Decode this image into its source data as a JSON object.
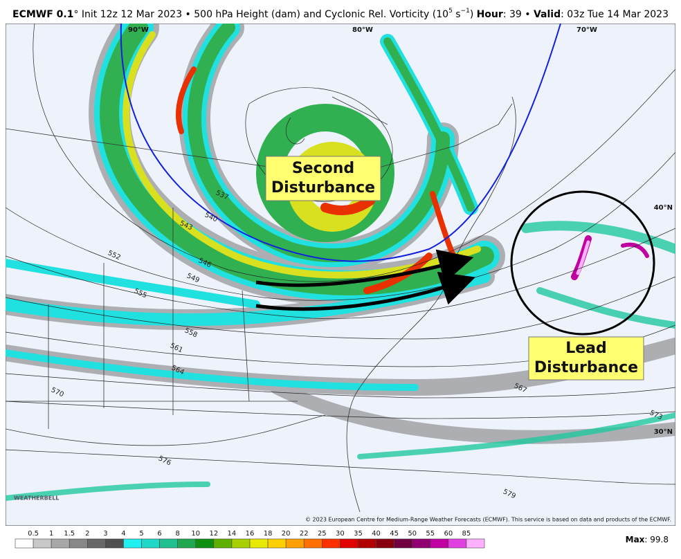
{
  "header": {
    "model": "ECMWF 0.1",
    "description": "° Init 12z 12 Mar 2023 • 500 hPa Height (dam) and Cyclonic Rel. Vorticity (10",
    "exponent": "5",
    "unit": " s",
    "unit_exponent": "−1",
    "closing": ")",
    "hour_label": "Hour",
    "hour_value": ": 39 • ",
    "valid_label": "Valid",
    "valid_value": ": 03z Tue 14 Mar 2023"
  },
  "annotations": [
    {
      "lines": [
        "Second",
        "Disturbance"
      ]
    },
    {
      "lines": [
        "Lead",
        "Disturbance"
      ]
    }
  ],
  "geo_labels": [
    "90°W",
    "80°W",
    "70°W",
    "40°N",
    "30°N"
  ],
  "contour_labels": [
    "537",
    "540",
    "543",
    "546",
    "549",
    "552",
    "555",
    "558",
    "561",
    "564",
    "567",
    "570",
    "573",
    "576",
    "579"
  ],
  "logo": "WEATHERBELL",
  "copyright": "© 2023 European Centre for Medium-Range Weather Forecasts (ECMWF). This service is based on data and products of the ECMWF.",
  "colorbar": {
    "labels": [
      "0.5",
      "1",
      "1.5",
      "2",
      "3",
      "4",
      "5",
      "6",
      "8",
      "10",
      "12",
      "14",
      "16",
      "18",
      "20",
      "22",
      "25",
      "30",
      "35",
      "40",
      "45",
      "50",
      "55",
      "60",
      "85"
    ],
    "colors": [
      "#ffffff",
      "#c8c8c8",
      "#a8a8a8",
      "#888888",
      "#686868",
      "#505050",
      "#20f0f0",
      "#20d8c8",
      "#20c090",
      "#20a850",
      "#109010",
      "#60b000",
      "#a8d000",
      "#e8e800",
      "#ffd000",
      "#ffa000",
      "#ff7000",
      "#ff3000",
      "#e00000",
      "#b00000",
      "#880010",
      "#700040",
      "#900070",
      "#c000a0",
      "#e040e0",
      "#ffb0ff"
    ]
  },
  "max": {
    "label": "Max",
    "value": ": 99.8"
  }
}
